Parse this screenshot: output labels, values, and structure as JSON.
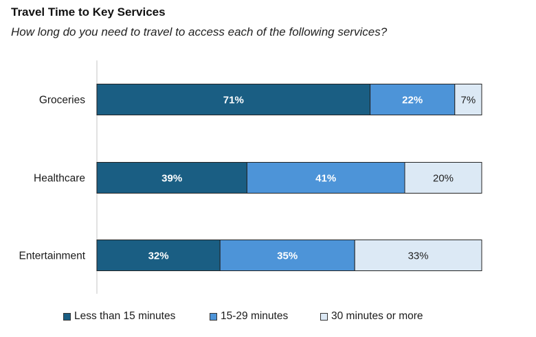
{
  "title": "Travel Time to Key Services",
  "subtitle": "How long do you need to travel to access each of the following services?",
  "colors": {
    "series_0": "#1a5e83",
    "series_1": "#4d94d8",
    "series_2": "#dce9f5",
    "label_dark_bg": "#ffffff",
    "label_light_bg": "#222222",
    "axis": "#d9d9d9",
    "bar_border": "#222222"
  },
  "chart_data": {
    "type": "bar",
    "orientation": "horizontal",
    "stacked": true,
    "categories": [
      "Groceries",
      "Healthcare",
      "Entertainment"
    ],
    "series": [
      {
        "name": "Less than 15 minutes",
        "values": [
          71,
          39,
          32
        ]
      },
      {
        "name": "15-29 minutes",
        "values": [
          22,
          41,
          35
        ]
      },
      {
        "name": "30 minutes or more",
        "values": [
          7,
          20,
          33
        ]
      }
    ],
    "value_suffix": "%",
    "xlim": [
      0,
      100
    ],
    "grid": false,
    "legend_position": "bottom",
    "xlabel": "",
    "ylabel": ""
  }
}
